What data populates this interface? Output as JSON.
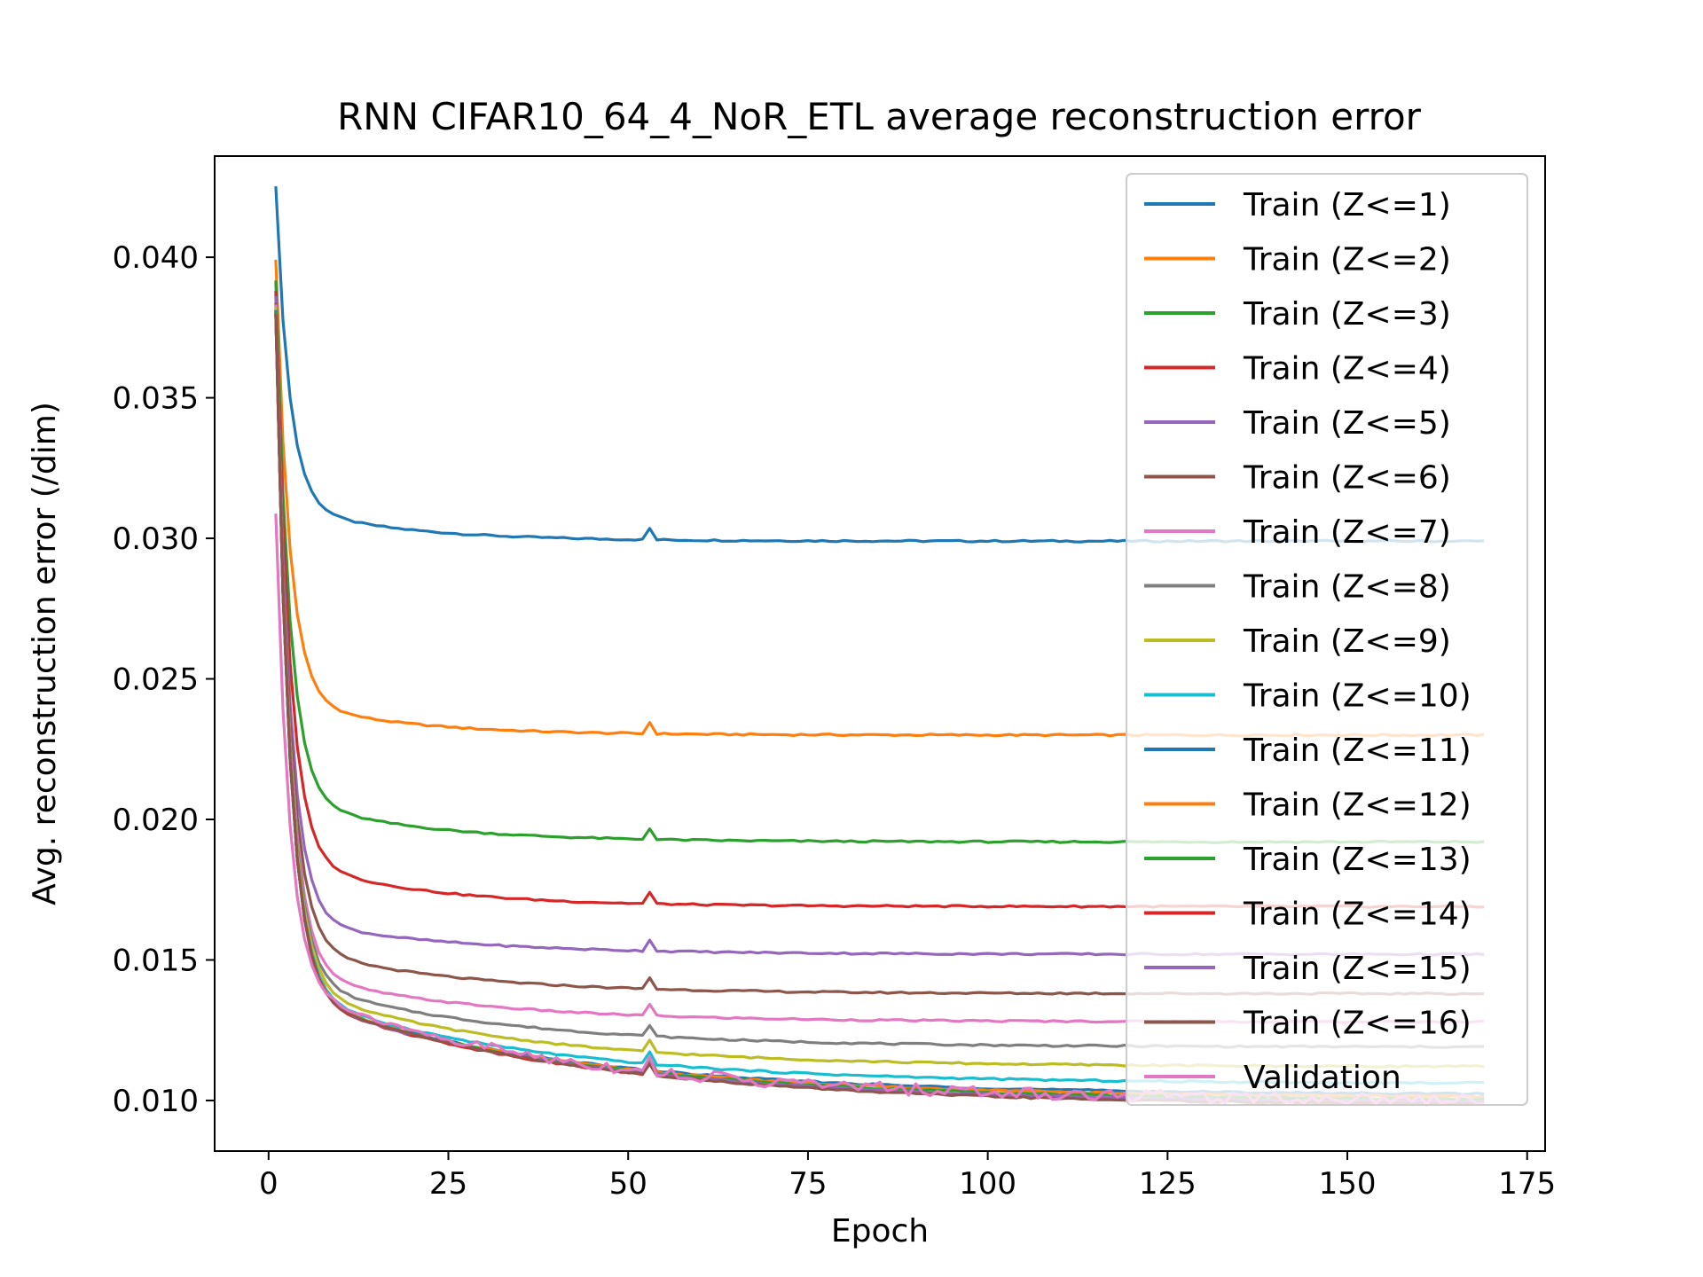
{
  "chart_data": {
    "type": "line",
    "title": "RNN CIFAR10_64_4_NoR_ETL average reconstruction error",
    "xlabel": "Epoch",
    "ylabel": "Avg. reconstruction error (/dim)",
    "xlim": [
      -7.5,
      177.5
    ],
    "ylim": [
      0.0082,
      0.0436
    ],
    "xticks": [
      0,
      25,
      50,
      75,
      100,
      125,
      150,
      175
    ],
    "xtick_labels": [
      "0",
      "25",
      "50",
      "75",
      "100",
      "125",
      "150",
      "175"
    ],
    "yticks": [
      0.01,
      0.015,
      0.02,
      0.025,
      0.03,
      0.035,
      0.04
    ],
    "ytick_labels": [
      "0.010",
      "0.015",
      "0.020",
      "0.025",
      "0.030",
      "0.035",
      "0.040"
    ],
    "grid": false,
    "legend_position": "top-right",
    "x_start": 1,
    "x_end": 169,
    "series": [
      {
        "name": "Train (Z<=1)",
        "color": "#1f77b4",
        "initial": 0.0425,
        "final": 0.0299,
        "amplitude": 0.0013,
        "tau": 16
      },
      {
        "name": "Train (Z<=2)",
        "color": "#ff7f0e",
        "initial": 0.0399,
        "final": 0.023,
        "amplitude": 0.0013,
        "tau": 16
      },
      {
        "name": "Train (Z<=3)",
        "color": "#2ca02c",
        "initial": 0.0392,
        "final": 0.0192,
        "amplitude": 0.0016,
        "tau": 18
      },
      {
        "name": "Train (Z<=4)",
        "color": "#d62728",
        "initial": 0.0388,
        "final": 0.0169,
        "amplitude": 0.0018,
        "tau": 18
      },
      {
        "name": "Train (Z<=5)",
        "color": "#9467bd",
        "initial": 0.0386,
        "final": 0.0152,
        "amplitude": 0.0013,
        "tau": 22
      },
      {
        "name": "Train (Z<=6)",
        "color": "#8c564b",
        "initial": 0.0384,
        "final": 0.0138,
        "amplitude": 0.0018,
        "tau": 22
      },
      {
        "name": "Train (Z<=7)",
        "color": "#e377c2",
        "initial": 0.0383,
        "final": 0.0128,
        "amplitude": 0.0019,
        "tau": 24
      },
      {
        "name": "Train (Z<=8)",
        "color": "#7f7f7f",
        "initial": 0.0382,
        "final": 0.0119,
        "amplitude": 0.0025,
        "tau": 28
      },
      {
        "name": "Train (Z<=9)",
        "color": "#bcbd22",
        "initial": 0.0382,
        "final": 0.0112,
        "amplitude": 0.003,
        "tau": 30
      },
      {
        "name": "Train (Z<=10)",
        "color": "#17becf",
        "initial": 0.0381,
        "final": 0.0106,
        "amplitude": 0.0034,
        "tau": 33
      },
      {
        "name": "Train (Z<=11)",
        "color": "#1f77b4",
        "initial": 0.0381,
        "final": 0.0102,
        "amplitude": 0.0037,
        "tau": 36
      },
      {
        "name": "Train (Z<=12)",
        "color": "#ff7f0e",
        "initial": 0.0381,
        "final": 0.0101,
        "amplitude": 0.0038,
        "tau": 37
      },
      {
        "name": "Train (Z<=13)",
        "color": "#2ca02c",
        "initial": 0.0381,
        "final": 0.01,
        "amplitude": 0.0039,
        "tau": 38
      },
      {
        "name": "Train (Z<=14)",
        "color": "#d62728",
        "initial": 0.038,
        "final": 0.0099,
        "amplitude": 0.004,
        "tau": 38
      },
      {
        "name": "Train (Z<=15)",
        "color": "#9467bd",
        "initial": 0.038,
        "final": 0.0099,
        "amplitude": 0.004,
        "tau": 39
      },
      {
        "name": "Train (Z<=16)",
        "color": "#8c564b",
        "initial": 0.038,
        "final": 0.0098,
        "amplitude": 0.0041,
        "tau": 40
      },
      {
        "name": "Validation",
        "color": "#e377c2",
        "initial": 0.0309,
        "final": 0.01,
        "amplitude": 0.0041,
        "tau": 38,
        "noisy": true
      }
    ]
  }
}
